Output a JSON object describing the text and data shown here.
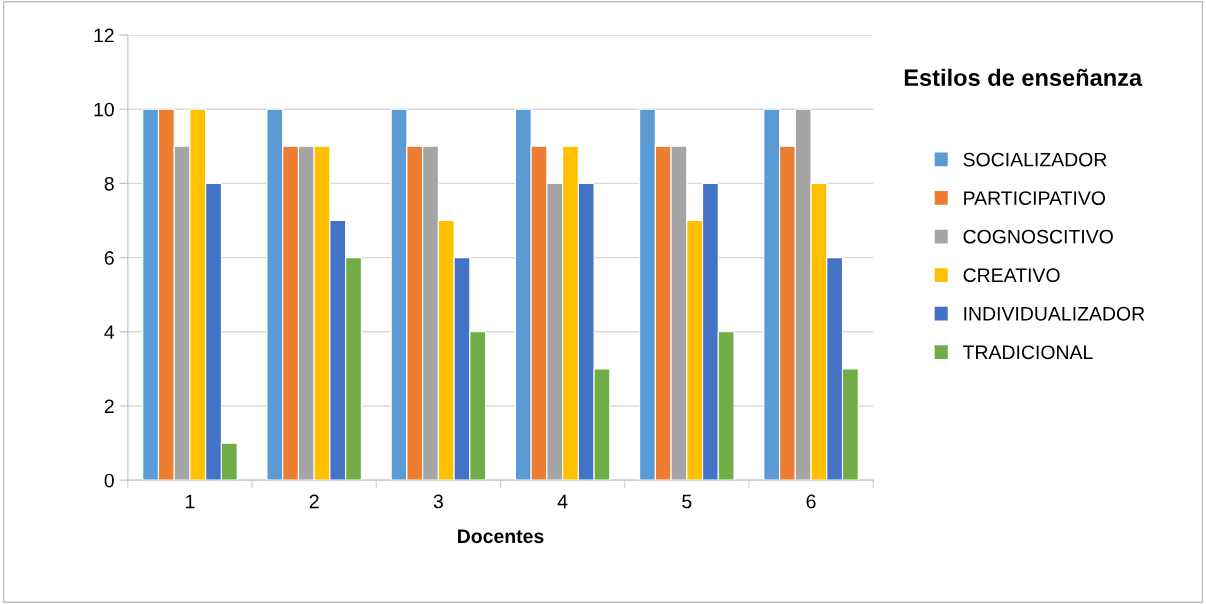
{
  "chart_data": {
    "type": "bar",
    "title": "Estilos de enseñanza",
    "xlabel": "Docentes",
    "categories": [
      "1",
      "2",
      "3",
      "4",
      "5",
      "6"
    ],
    "series": [
      {
        "name": "SOCIALIZADOR",
        "color": "#5b9bd5",
        "values": [
          10,
          10,
          10,
          10,
          10,
          10
        ]
      },
      {
        "name": "PARTICIPATIVO",
        "color": "#ed7d31",
        "values": [
          10,
          9,
          9,
          9,
          9,
          9
        ]
      },
      {
        "name": "COGNOSCITIVO",
        "color": "#a5a5a5",
        "values": [
          9,
          9,
          9,
          8,
          9,
          10
        ]
      },
      {
        "name": "CREATIVO",
        "color": "#ffc000",
        "values": [
          10,
          9,
          7,
          9,
          7,
          8
        ]
      },
      {
        "name": "INDIVIDUALIZADOR",
        "color": "#4472c4",
        "values": [
          8,
          7,
          6,
          8,
          8,
          6
        ]
      },
      {
        "name": "TRADICIONAL",
        "color": "#70ad47",
        "values": [
          1,
          6,
          4,
          3,
          4,
          3
        ]
      }
    ],
    "ylim": [
      0,
      12
    ],
    "yticks": [
      0,
      2,
      4,
      6,
      8,
      10,
      12
    ],
    "grid": "y",
    "legend": "right"
  }
}
